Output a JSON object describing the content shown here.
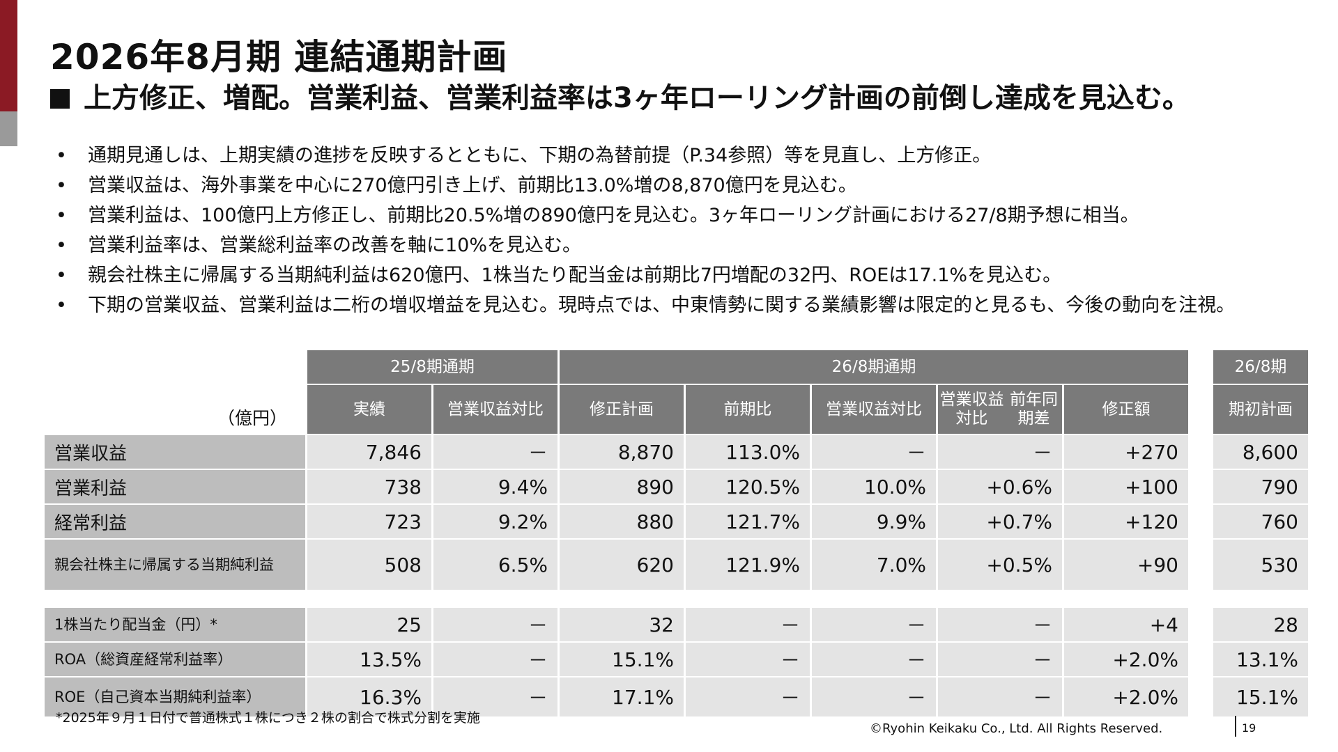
{
  "header": {
    "title": "2026年8月期 連結通期計画",
    "subtitle": "上方修正、増配。営業利益、営業利益率は3ヶ年ローリング計画の前倒し達成を見込む。"
  },
  "bullets": [
    "通期見通しは、上期実績の進捗を反映するとともに、下期の為替前提（P.34参照）等を見直し、上方修正。",
    "営業収益は、海外事業を中心に270億円引き上げ、前期比13.0%増の8,870億円を見込む。",
    "営業利益は、100億円上方修正し、前期比20.5%増の890億円を見込む。3ヶ年ローリング計画における27/8期予想に相当。",
    "営業利益率は、営業総利益率の改善を軸に10%を見込む。",
    "親会社株主に帰属する当期純利益は620億円、1株当たり配当金は前期比7円増配の32円、ROEは17.1%を見込む。",
    "下期の営業収益、営業利益は二桁の増収増益を見込む。現時点では、中東情勢に関する業績影響は限定的と見るも、今後の動向を注視。"
  ],
  "table": {
    "unit": "（億円）",
    "groups": [
      "25/8期通期",
      "26/8期通期",
      "26/8期"
    ],
    "columns": [
      "実績",
      "営業収益対比",
      "修正計画",
      "前期比",
      "営業収益対比",
      "営業収益対比前年同期差",
      "修正額",
      "期初計画"
    ],
    "col_lines": [
      [
        "実績"
      ],
      [
        "営業収益対比"
      ],
      [
        "修正計画"
      ],
      [
        "前期比"
      ],
      [
        "営業収益対比"
      ],
      [
        "営業収益対比",
        "前年同期差"
      ],
      [
        "修正額"
      ],
      [
        "期初計画"
      ]
    ],
    "rows": [
      {
        "label": "営業収益",
        "label_lines": [
          "営業収益"
        ],
        "values": [
          "7,846",
          "－",
          "8,870",
          "113.0%",
          "－",
          "－",
          "+270",
          "8,600"
        ]
      },
      {
        "label": "営業利益",
        "label_lines": [
          "営業利益"
        ],
        "values": [
          "738",
          "9.4%",
          "890",
          "120.5%",
          "10.0%",
          "+0.6%",
          "+100",
          "790"
        ]
      },
      {
        "label": "経常利益",
        "label_lines": [
          "経常利益"
        ],
        "values": [
          "723",
          "9.2%",
          "880",
          "121.7%",
          "9.9%",
          "+0.7%",
          "+120",
          "760"
        ]
      },
      {
        "label": "親会社株主に帰属する当期純利益",
        "label_lines": [
          "親会社株主に帰属する",
          "当期純利益"
        ],
        "values": [
          "508",
          "6.5%",
          "620",
          "121.9%",
          "7.0%",
          "+0.5%",
          "+90",
          "530"
        ]
      },
      {
        "label": "1株当たり配当金（円）*",
        "label_lines": [
          "1株当たり配当金（円）*"
        ],
        "values": [
          "25",
          "－",
          "32",
          "－",
          "－",
          "－",
          "+4",
          "28"
        ]
      },
      {
        "label": "ROA（総資産経常利益率）",
        "label_lines": [
          "ROA（総資産経常利益率）"
        ],
        "values": [
          "13.5%",
          "－",
          "15.1%",
          "－",
          "－",
          "－",
          "+2.0%",
          "13.1%"
        ]
      },
      {
        "label": "ROE（自己資本当期純利益率）",
        "label_lines": [
          "ROE（自己資本当期純利益率）"
        ],
        "values": [
          "16.3%",
          "－",
          "17.1%",
          "－",
          "－",
          "－",
          "+2.0%",
          "15.1%"
        ]
      }
    ]
  },
  "footer": {
    "footnote": "*2025年９月１日付で普通株式１株につき２株の割合で株式分割を実施",
    "copyright": "©Ryohin Keikaku Co., Ltd. All Rights Reserved.",
    "page_number": "19"
  },
  "colors": {
    "accent": "#8b1a24",
    "accent_secondary": "#9a9a9a",
    "header_cell": "#7a7a7a",
    "row_label_cell": "#bdbdbd",
    "value_cell": "#e4e4e4"
  }
}
